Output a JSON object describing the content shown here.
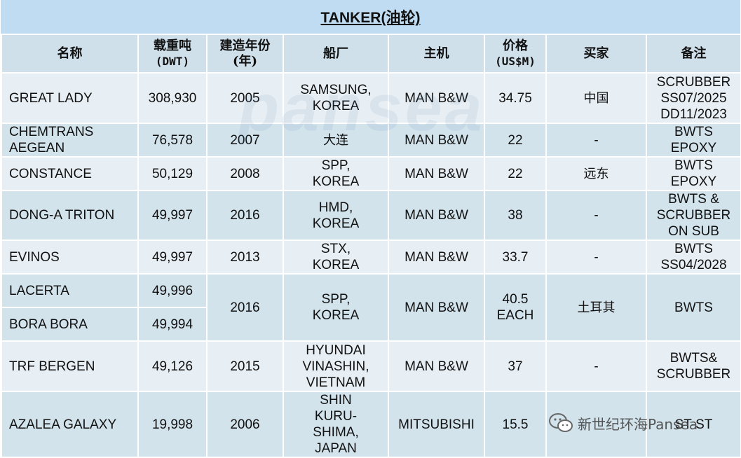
{
  "title": "TANKER(油轮)",
  "headers": {
    "name": "名称",
    "dwt_1": "载重吨",
    "dwt_2": "(DWT)",
    "built_1": "建造年份",
    "built_2": "(年)",
    "yard": "船厂",
    "engine": "主机",
    "price_1": "价格",
    "price_2": "(US$M)",
    "buyer": "买家",
    "remarks": "备注"
  },
  "rows": [
    {
      "name": "GREAT LADY",
      "dwt": "308,930",
      "built": "2005",
      "yard": [
        "SAMSUNG,",
        "KOREA"
      ],
      "engine": "MAN B&W",
      "price": [
        "34.75"
      ],
      "buyer": "中国",
      "remarks": [
        "SCRUBBER",
        "SS07/2025",
        "DD11/2023"
      ]
    },
    {
      "name": [
        "CHEMTRANS",
        "AEGEAN"
      ],
      "dwt": "76,578",
      "built": "2007",
      "yard": [
        "大连"
      ],
      "engine": "MAN B&W",
      "price": [
        "22"
      ],
      "buyer": "-",
      "remarks": [
        "BWTS",
        "EPOXY"
      ]
    },
    {
      "name": "CONSTANCE",
      "dwt": "50,129",
      "built": "2008",
      "yard": [
        "SPP,",
        "KOREA"
      ],
      "engine": "MAN B&W",
      "price": [
        "22"
      ],
      "buyer": "远东",
      "remarks": [
        "BWTS",
        "EPOXY"
      ]
    },
    {
      "name": "DONG-A TRITON",
      "dwt": "49,997",
      "built": "2016",
      "yard": [
        "HMD,",
        "KOREA"
      ],
      "engine": "MAN B&W",
      "price": [
        "38"
      ],
      "buyer": "-",
      "remarks": [
        "BWTS &",
        "SCRUBBER",
        "ON SUB"
      ]
    },
    {
      "name": "EVINOS",
      "dwt": "49,997",
      "built": "2013",
      "yard": [
        "STX,",
        "KOREA"
      ],
      "engine": "MAN B&W",
      "price": [
        "33.7"
      ],
      "buyer": "-",
      "remarks": [
        "BWTS",
        "SS04/2028"
      ]
    },
    {
      "name": "LACERTA",
      "dwt": "49,996",
      "built": "2016",
      "yard": [
        "SPP,",
        "KOREA"
      ],
      "engine": "MAN B&W",
      "price": [
        "40.5",
        "EACH"
      ],
      "buyer": "土耳其",
      "remarks": [
        "BWTS"
      ]
    },
    {
      "name": "BORA BORA",
      "dwt": "49,994"
    },
    {
      "name": "TRF BERGEN",
      "dwt": "49,126",
      "built": "2015",
      "yard": [
        "HYUNDAI",
        "VINASHIN,",
        "VIETNAM"
      ],
      "engine": "MAN B&W",
      "price": [
        "37"
      ],
      "buyer": "-",
      "remarks": [
        "BWTS&",
        "SCRUBBER"
      ]
    },
    {
      "name": "AZALEA GALAXY",
      "dwt": "19,998",
      "built": "2006",
      "yard": [
        "SHIN",
        "KURU-",
        "SHIMA,",
        "JAPAN"
      ],
      "engine": "MITSUBISHI",
      "price": [
        "15.5"
      ],
      "buyer": "",
      "remarks": [
        "ST-ST"
      ]
    }
  ],
  "watermark": "pansea",
  "wechat_label": "新世纪环海Pansea",
  "colors": {
    "title_bg": "#bfdcf3",
    "header_bg": "#cfe0ea",
    "row_light": "#e8eff4",
    "row_dark": "#d2e3ec"
  }
}
